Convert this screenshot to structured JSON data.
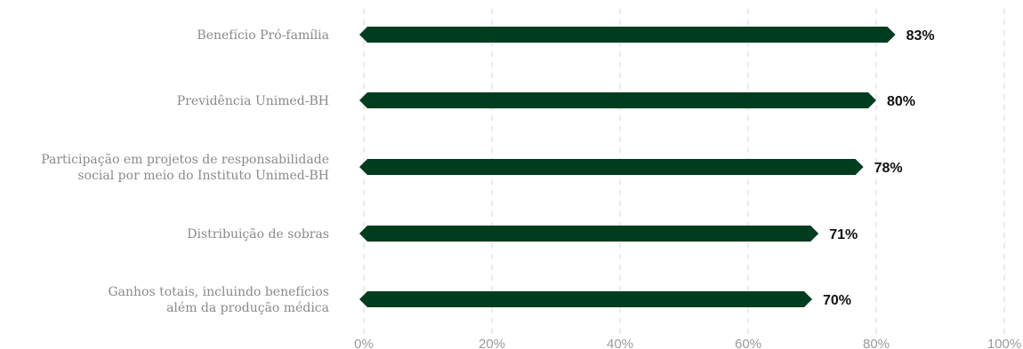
{
  "chart_data": {
    "type": "bar",
    "orientation": "horizontal",
    "categories": [
      [
        "Benefício Pró-família"
      ],
      [
        "Previdência Unimed-BH"
      ],
      [
        "Participação em projetos de responsabilidade",
        "social por meio do Instituto Unimed-BH"
      ],
      [
        "Distribuição de sobras"
      ],
      [
        "Ganhos totais, incluindo benefícios",
        "além da produção médica"
      ]
    ],
    "values": [
      83,
      80,
      78,
      71,
      70
    ],
    "value_labels": [
      "83%",
      "80%",
      "78%",
      "71%",
      "70%"
    ],
    "xlim": [
      0,
      100
    ],
    "x_ticks": [
      0,
      20,
      40,
      60,
      80,
      100
    ],
    "x_tick_labels": [
      "0%",
      "20%",
      "40%",
      "60%",
      "80%",
      "100%"
    ],
    "grid": true,
    "bar_color": "#003d1f"
  }
}
